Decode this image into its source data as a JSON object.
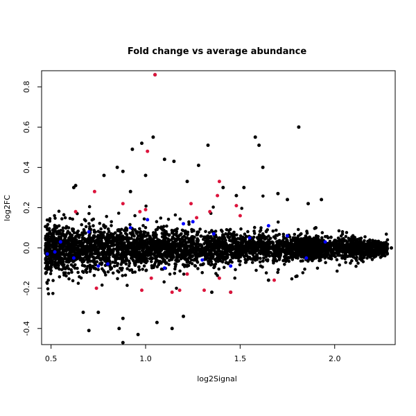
{
  "chart_data": {
    "type": "scatter",
    "title": "Fold change vs average abundance",
    "xlabel": "log2Signal",
    "ylabel": "log2FC",
    "xlim": [
      0.45,
      2.32
    ],
    "ylim": [
      -0.48,
      0.88
    ],
    "xticks": [
      0.5,
      1.0,
      1.5,
      2.0
    ],
    "xtick_labels": [
      "0.5",
      "1.0",
      "1.5",
      "2.0"
    ],
    "yticks": [
      -0.4,
      -0.2,
      0.0,
      0.2,
      0.4,
      0.6,
      0.8
    ],
    "ytick_labels": [
      "-0.4",
      "-0.2",
      "0.0",
      "0.2",
      "0.4",
      "0.6",
      "0.8"
    ],
    "grid": false,
    "legend": "none",
    "colors": {
      "background": "#000000",
      "highlight": "#0000ff",
      "significant": "#dc143c"
    },
    "series": [
      {
        "color": "#000000",
        "points": [
          [
            1.05,
            0.86
          ],
          [
            1.81,
            0.6
          ],
          [
            0.98,
            0.52
          ],
          [
            1.33,
            0.51
          ],
          [
            1.6,
            0.51
          ],
          [
            1.04,
            0.55
          ],
          [
            0.93,
            0.49
          ],
          [
            1.58,
            0.55
          ],
          [
            0.85,
            0.4
          ],
          [
            0.88,
            0.38
          ],
          [
            1.1,
            0.44
          ],
          [
            1.15,
            0.43
          ],
          [
            1.28,
            0.41
          ],
          [
            1.62,
            0.4
          ],
          [
            0.78,
            0.36
          ],
          [
            1.7,
            0.27
          ],
          [
            0.63,
            0.31
          ],
          [
            0.62,
            0.3
          ],
          [
            1.52,
            0.3
          ],
          [
            1.75,
            0.24
          ],
          [
            1.86,
            0.22
          ],
          [
            1.93,
            0.24
          ],
          [
            0.75,
            -0.32
          ],
          [
            0.86,
            -0.4
          ],
          [
            0.7,
            -0.41
          ],
          [
            0.88,
            -0.47
          ],
          [
            0.96,
            -0.43
          ],
          [
            1.06,
            -0.37
          ],
          [
            1.14,
            -0.4
          ],
          [
            0.88,
            -0.35
          ],
          [
            1.2,
            -0.34
          ],
          [
            0.67,
            -0.32
          ],
          [
            1.35,
            -0.22
          ],
          [
            1.45,
            -0.22
          ],
          [
            2.04,
            -0.05
          ],
          [
            2.1,
            0.04
          ],
          [
            2.22,
            0.02
          ],
          [
            2.3,
            0.0
          ],
          [
            2.27,
            -0.01
          ],
          [
            0.47,
            -0.01
          ],
          [
            1.8,
            -0.14
          ],
          [
            1.65,
            -0.16
          ],
          [
            1.9,
            0.1
          ],
          [
            1.22,
            0.33
          ],
          [
            0.92,
            0.28
          ],
          [
            1.0,
            0.36
          ],
          [
            1.41,
            0.3
          ],
          [
            1.48,
            0.26
          ]
        ]
      },
      {
        "color": "#0000ff",
        "points": [
          [
            0.48,
            -0.03
          ],
          [
            0.52,
            -0.02
          ],
          [
            0.55,
            0.03
          ],
          [
            0.62,
            -0.05
          ],
          [
            0.7,
            0.08
          ],
          [
            0.8,
            -0.08
          ],
          [
            0.92,
            0.1
          ],
          [
            1.01,
            0.14
          ],
          [
            1.1,
            -0.1
          ],
          [
            1.2,
            0.12
          ],
          [
            1.3,
            -0.06
          ],
          [
            1.36,
            0.07
          ],
          [
            1.45,
            -0.09
          ],
          [
            1.55,
            0.05
          ],
          [
            1.65,
            0.11
          ],
          [
            1.75,
            0.06
          ],
          [
            1.85,
            -0.05
          ],
          [
            1.95,
            0.03
          ],
          [
            0.75,
            -0.09
          ],
          [
            1.25,
            0.13
          ]
        ]
      },
      {
        "color": "#dc143c",
        "points": [
          [
            1.05,
            0.86
          ],
          [
            1.01,
            0.48
          ],
          [
            1.39,
            0.33
          ],
          [
            1.38,
            0.26
          ],
          [
            0.73,
            0.28
          ],
          [
            0.63,
            0.18
          ],
          [
            0.88,
            0.22
          ],
          [
            0.97,
            0.18
          ],
          [
            1.0,
            0.19
          ],
          [
            1.24,
            0.22
          ],
          [
            1.48,
            0.21
          ],
          [
            1.22,
            -0.13
          ],
          [
            1.31,
            -0.21
          ],
          [
            1.45,
            -0.22
          ],
          [
            1.68,
            -0.16
          ],
          [
            0.98,
            -0.21
          ],
          [
            1.14,
            -0.22
          ],
          [
            1.03,
            -0.15
          ],
          [
            1.39,
            -0.15
          ],
          [
            1.5,
            0.16
          ],
          [
            1.18,
            -0.21
          ],
          [
            1.27,
            0.15
          ],
          [
            0.74,
            -0.2
          ],
          [
            1.34,
            0.18
          ]
        ]
      }
    ]
  }
}
